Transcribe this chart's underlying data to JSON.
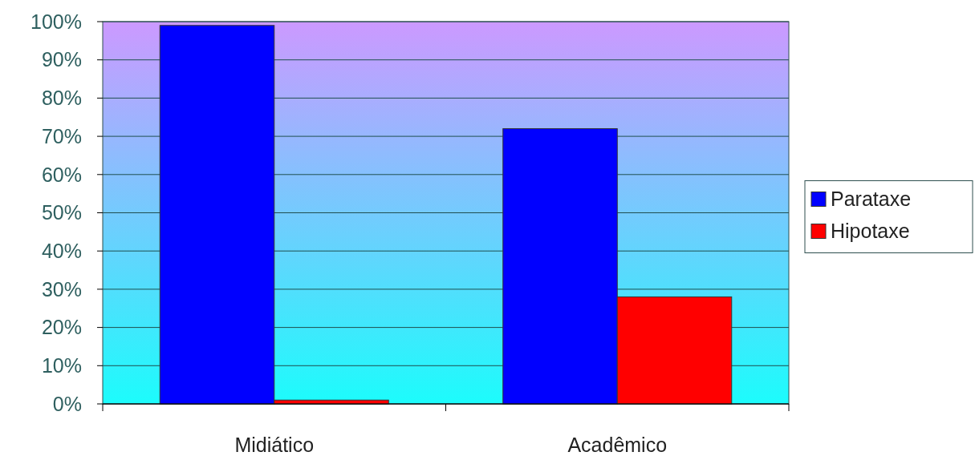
{
  "chart_data": {
    "type": "bar",
    "categories": [
      "Midiático",
      "Acadêmico"
    ],
    "series": [
      {
        "name": "Parataxe",
        "color": "#0000ff",
        "values": [
          99,
          72
        ]
      },
      {
        "name": "Hipotaxe",
        "color": "#ff0000",
        "values": [
          1,
          28
        ]
      }
    ],
    "ylim": [
      0,
      100
    ],
    "yticks": [
      {
        "value": 0,
        "label": "0%"
      },
      {
        "value": 10,
        "label": "10%"
      },
      {
        "value": 20,
        "label": "20%"
      },
      {
        "value": 30,
        "label": "30%"
      },
      {
        "value": 40,
        "label": "40%"
      },
      {
        "value": 50,
        "label": "50%"
      },
      {
        "value": 60,
        "label": "60%"
      },
      {
        "value": 70,
        "label": "70%"
      },
      {
        "value": 80,
        "label": "80%"
      },
      {
        "value": 90,
        "label": "90%"
      },
      {
        "value": 100,
        "label": "100%"
      }
    ],
    "grid": "y",
    "legend": "right"
  }
}
